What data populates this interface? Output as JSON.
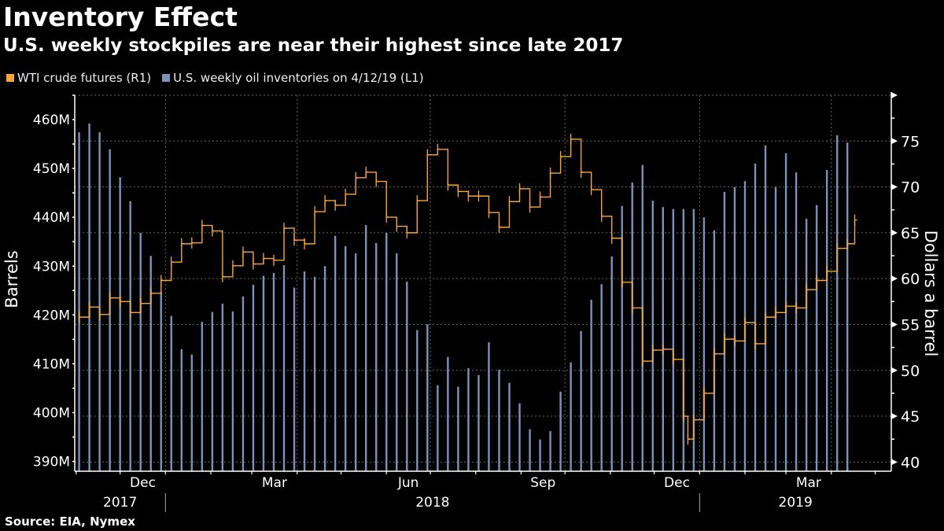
{
  "header": {
    "title": "Inventory Effect",
    "subtitle": "U.S. weekly stockpiles are near their highest since late 2017"
  },
  "source": "Source: EIA, Nymex",
  "chart_data": {
    "type": "bar+line",
    "title": "Inventory Effect",
    "subtitle": "U.S. weekly stockpiles are near their highest since late 2017",
    "legend_position": "top-left",
    "grid": true,
    "x_range": [
      "2017-10-31",
      "2019-05-12"
    ],
    "x_month_labels": [
      {
        "label": "Dec",
        "month": "2017-12"
      },
      {
        "label": "Mar",
        "month": "2018-03"
      },
      {
        "label": "Jun",
        "month": "2018-06"
      },
      {
        "label": "Sep",
        "month": "2018-09"
      },
      {
        "label": "Dec",
        "month": "2018-12"
      },
      {
        "label": "Mar",
        "month": "2019-03"
      }
    ],
    "x_year_labels": [
      "2017",
      "2018",
      "2019"
    ],
    "left_axis": {
      "label": "Barrels",
      "ylim": [
        388,
        465
      ],
      "ticks": [
        390,
        400,
        410,
        420,
        430,
        440,
        450,
        460
      ],
      "tick_labels": [
        "390M",
        "400M",
        "410M",
        "420M",
        "430M",
        "440M",
        "450M",
        "460M"
      ]
    },
    "right_axis": {
      "label": "Dollars a barrel",
      "ylim": [
        39,
        80
      ],
      "ticks": [
        40,
        45,
        50,
        55,
        60,
        65,
        70,
        75
      ],
      "tick_labels": [
        "40",
        "45",
        "50",
        "55",
        "60",
        "65",
        "70",
        "75"
      ]
    },
    "series": [
      {
        "name": "WTI crude futures (R1)",
        "type": "line",
        "axis": "right",
        "color": "#f7a53b",
        "x": [
          "2017-11-03",
          "2017-11-10",
          "2017-11-17",
          "2017-11-24",
          "2017-12-01",
          "2017-12-08",
          "2017-12-15",
          "2017-12-22",
          "2017-12-29",
          "2018-01-05",
          "2018-01-12",
          "2018-01-19",
          "2018-01-26",
          "2018-02-02",
          "2018-02-09",
          "2018-02-16",
          "2018-02-23",
          "2018-03-02",
          "2018-03-09",
          "2018-03-16",
          "2018-03-23",
          "2018-03-30",
          "2018-04-06",
          "2018-04-13",
          "2018-04-20",
          "2018-04-27",
          "2018-05-04",
          "2018-05-11",
          "2018-05-18",
          "2018-05-25",
          "2018-06-01",
          "2018-06-08",
          "2018-06-15",
          "2018-06-22",
          "2018-06-29",
          "2018-07-06",
          "2018-07-13",
          "2018-07-20",
          "2018-07-27",
          "2018-08-03",
          "2018-08-10",
          "2018-08-17",
          "2018-08-24",
          "2018-08-31",
          "2018-09-07",
          "2018-09-14",
          "2018-09-21",
          "2018-09-28",
          "2018-10-05",
          "2018-10-12",
          "2018-10-19",
          "2018-10-26",
          "2018-11-02",
          "2018-11-09",
          "2018-11-16",
          "2018-11-23",
          "2018-11-30",
          "2018-12-07",
          "2018-12-14",
          "2018-12-21",
          "2018-12-24",
          "2018-12-28",
          "2019-01-04",
          "2019-01-11",
          "2019-01-18",
          "2019-01-25",
          "2019-02-01",
          "2019-02-08",
          "2019-02-15",
          "2019-02-22",
          "2019-03-01",
          "2019-03-08",
          "2019-03-15",
          "2019-03-22",
          "2019-03-29",
          "2019-04-05",
          "2019-04-12",
          "2019-04-17"
        ],
        "values": [
          55.8,
          56.9,
          56.1,
          57.9,
          57.5,
          56.3,
          57.3,
          58.4,
          59.8,
          61.8,
          63.8,
          63.9,
          65.8,
          65.2,
          60.2,
          61.4,
          62.9,
          61.6,
          62.2,
          62.0,
          65.5,
          64.2,
          63.8,
          67.3,
          68.5,
          68.0,
          69.2,
          71.0,
          71.6,
          70.6,
          66.7,
          65.7,
          65.0,
          68.5,
          73.5,
          74.1,
          70.2,
          69.5,
          69.0,
          69.0,
          67.2,
          65.6,
          68.4,
          69.8,
          67.8,
          68.9,
          71.5,
          73.3,
          75.2,
          71.6,
          69.7,
          66.8,
          64.4,
          59.6,
          56.8,
          51.0,
          52.2,
          52.3,
          51.2,
          45.0,
          42.5,
          44.6,
          47.5,
          51.8,
          53.4,
          53.2,
          55.2,
          52.9,
          55.8,
          56.3,
          57.0,
          56.8,
          58.8,
          59.8,
          60.8,
          63.3,
          63.8,
          66.4
        ]
      },
      {
        "name": "U.S. weekly oil inventories on 4/12/19 (L1)",
        "type": "bar",
        "axis": "left",
        "color": "#7b93b8",
        "unit": "M barrels",
        "x": [
          "2017-11-03",
          "2017-11-10",
          "2017-11-17",
          "2017-11-24",
          "2017-12-01",
          "2017-12-08",
          "2017-12-15",
          "2017-12-22",
          "2017-12-29",
          "2018-01-05",
          "2018-01-12",
          "2018-01-19",
          "2018-01-26",
          "2018-02-02",
          "2018-02-09",
          "2018-02-16",
          "2018-02-23",
          "2018-03-02",
          "2018-03-09",
          "2018-03-16",
          "2018-03-23",
          "2018-03-30",
          "2018-04-06",
          "2018-04-13",
          "2018-04-20",
          "2018-04-27",
          "2018-05-04",
          "2018-05-11",
          "2018-05-18",
          "2018-05-25",
          "2018-06-01",
          "2018-06-08",
          "2018-06-15",
          "2018-06-22",
          "2018-06-29",
          "2018-07-06",
          "2018-07-13",
          "2018-07-20",
          "2018-07-27",
          "2018-08-03",
          "2018-08-10",
          "2018-08-17",
          "2018-08-24",
          "2018-08-31",
          "2018-09-07",
          "2018-09-14",
          "2018-09-21",
          "2018-09-28",
          "2018-10-05",
          "2018-10-12",
          "2018-10-19",
          "2018-10-26",
          "2018-11-02",
          "2018-11-09",
          "2018-11-16",
          "2018-11-23",
          "2018-11-30",
          "2018-12-07",
          "2018-12-14",
          "2018-12-21",
          "2018-12-28",
          "2019-01-04",
          "2019-01-11",
          "2019-01-18",
          "2019-01-25",
          "2019-02-01",
          "2019-02-08",
          "2019-02-15",
          "2019-02-22",
          "2019-03-01",
          "2019-03-08",
          "2019-03-15",
          "2019-03-22",
          "2019-03-29",
          "2019-04-05",
          "2019-04-12"
        ],
        "values": [
          457.4,
          459.2,
          457.4,
          453.9,
          448.2,
          443.3,
          436.8,
          432.1,
          424.7,
          419.8,
          413.0,
          411.9,
          418.6,
          420.6,
          422.3,
          420.7,
          423.8,
          426.2,
          428.0,
          428.6,
          430.2,
          425.6,
          428.9,
          427.8,
          430.0,
          436.2,
          434.1,
          432.6,
          438.4,
          434.7,
          436.8,
          432.6,
          426.8,
          416.9,
          418.1,
          405.6,
          411.4,
          405.3,
          409.1,
          407.7,
          414.4,
          408.8,
          406.1,
          401.9,
          396.6,
          394.5,
          396.2,
          404.3,
          410.3,
          416.7,
          423.1,
          426.3,
          432.0,
          442.3,
          447.1,
          450.7,
          443.4,
          442.1,
          441.7,
          441.7,
          441.7,
          440.0,
          437.3,
          445.2,
          446.2,
          447.4,
          451.0,
          454.7,
          446.2,
          453.1,
          449.2,
          439.7,
          442.5,
          449.7,
          456.8,
          455.3
        ]
      }
    ]
  }
}
